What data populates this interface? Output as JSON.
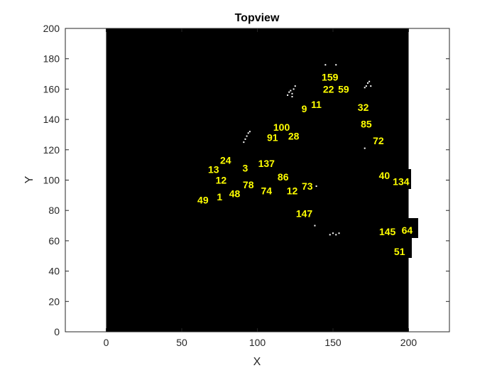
{
  "chart_data": {
    "type": "scatter",
    "title": "Topview",
    "xlabel": "X",
    "ylabel": "Y",
    "xlim": [
      -27,
      227
    ],
    "ylim": [
      0,
      200
    ],
    "xticks": [
      0,
      50,
      100,
      150,
      200
    ],
    "yticks": [
      0,
      20,
      40,
      60,
      80,
      100,
      120,
      140,
      160,
      180,
      200
    ],
    "image_region": {
      "x": [
        0,
        200
      ],
      "y": [
        0,
        200
      ]
    },
    "grid": false,
    "colors": {
      "background": "#000000",
      "label": "#ffff00",
      "points": "#ffffff",
      "axes": "#262626"
    },
    "labels": [
      {
        "text": "159",
        "x": 148,
        "y": 168
      },
      {
        "text": "22",
        "x": 147,
        "y": 160
      },
      {
        "text": "59",
        "x": 157,
        "y": 160
      },
      {
        "text": "11",
        "x": 139,
        "y": 150
      },
      {
        "text": "9",
        "x": 131,
        "y": 147
      },
      {
        "text": "32",
        "x": 170,
        "y": 148
      },
      {
        "text": "85",
        "x": 172,
        "y": 137
      },
      {
        "text": "100",
        "x": 116,
        "y": 135
      },
      {
        "text": "72",
        "x": 180,
        "y": 126
      },
      {
        "text": "91",
        "x": 110,
        "y": 128
      },
      {
        "text": "28",
        "x": 124,
        "y": 129
      },
      {
        "text": "24",
        "x": 79,
        "y": 113
      },
      {
        "text": "137",
        "x": 106,
        "y": 111
      },
      {
        "text": "3",
        "x": 92,
        "y": 108
      },
      {
        "text": "13",
        "x": 71,
        "y": 107
      },
      {
        "text": "86",
        "x": 117,
        "y": 102
      },
      {
        "text": "40",
        "x": 184,
        "y": 103
      },
      {
        "text": "12",
        "x": 76,
        "y": 100
      },
      {
        "text": "134",
        "x": 195,
        "y": 99
      },
      {
        "text": "78",
        "x": 94,
        "y": 97
      },
      {
        "text": "73",
        "x": 133,
        "y": 96
      },
      {
        "text": "74",
        "x": 106,
        "y": 93
      },
      {
        "text": "12",
        "x": 123,
        "y": 93
      },
      {
        "text": "48",
        "x": 85,
        "y": 91
      },
      {
        "text": "1",
        "x": 75,
        "y": 89
      },
      {
        "text": "49",
        "x": 64,
        "y": 87
      },
      {
        "text": "147",
        "x": 131,
        "y": 78
      },
      {
        "text": "145",
        "x": 186,
        "y": 66
      },
      {
        "text": "64",
        "x": 199,
        "y": 67
      },
      {
        "text": "51",
        "x": 194,
        "y": 53
      }
    ],
    "points": [
      {
        "x": 92,
        "y": 127
      },
      {
        "x": 93,
        "y": 129
      },
      {
        "x": 94,
        "y": 131
      },
      {
        "x": 95,
        "y": 132
      },
      {
        "x": 91,
        "y": 125
      },
      {
        "x": 120,
        "y": 156
      },
      {
        "x": 121,
        "y": 158
      },
      {
        "x": 122,
        "y": 159
      },
      {
        "x": 123,
        "y": 157
      },
      {
        "x": 124,
        "y": 160
      },
      {
        "x": 125,
        "y": 162
      },
      {
        "x": 123,
        "y": 155
      },
      {
        "x": 145,
        "y": 176
      },
      {
        "x": 152,
        "y": 176
      },
      {
        "x": 172,
        "y": 162
      },
      {
        "x": 173,
        "y": 164
      },
      {
        "x": 174,
        "y": 165
      },
      {
        "x": 175,
        "y": 162
      },
      {
        "x": 171,
        "y": 161
      },
      {
        "x": 171,
        "y": 121
      },
      {
        "x": 139,
        "y": 96
      },
      {
        "x": 138,
        "y": 70
      },
      {
        "x": 148,
        "y": 64
      },
      {
        "x": 150,
        "y": 65
      },
      {
        "x": 152,
        "y": 64
      },
      {
        "x": 154,
        "y": 65
      }
    ]
  }
}
